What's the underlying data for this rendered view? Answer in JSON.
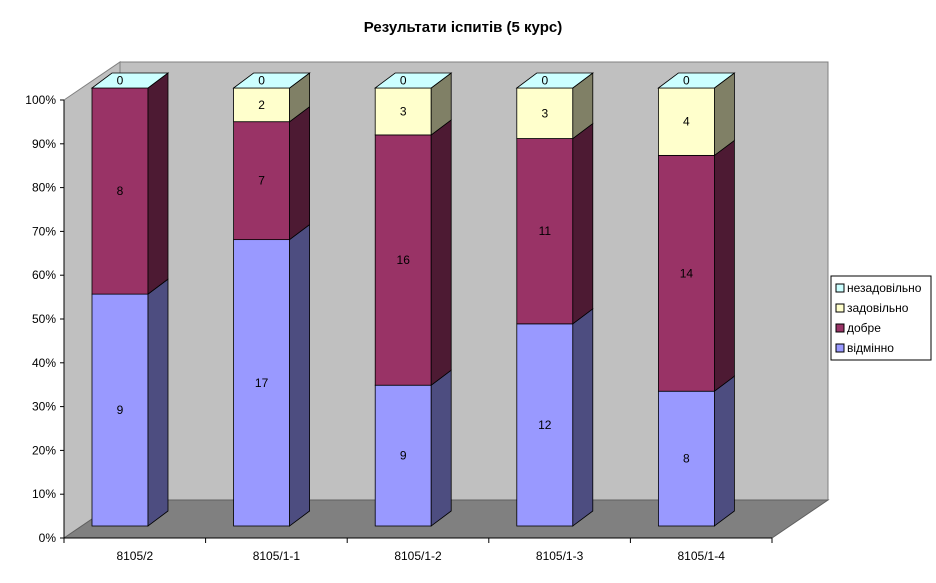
{
  "chart_data": {
    "type": "bar",
    "subtype": "stacked-100-3d",
    "title": "Результати іспитів (5 курс)",
    "categories": [
      "8105/2",
      "8105/1-1",
      "8105/1-2",
      "8105/1-3",
      "8105/1-4"
    ],
    "series": [
      {
        "name": "відмінно",
        "values": [
          9,
          17,
          9,
          12,
          8
        ],
        "color": "#9999FF"
      },
      {
        "name": "добре",
        "values": [
          8,
          7,
          16,
          11,
          14
        ],
        "color": "#993366"
      },
      {
        "name": "задовільно",
        "values": [
          0,
          2,
          3,
          3,
          4
        ],
        "color": "#FFFFCC"
      },
      {
        "name": "незадовільно",
        "values": [
          0,
          0,
          0,
          0,
          0
        ],
        "color": "#CCFFFF"
      }
    ],
    "y_ticks": [
      "0%",
      "10%",
      "20%",
      "30%",
      "40%",
      "50%",
      "60%",
      "70%",
      "80%",
      "90%",
      "100%"
    ],
    "ylim": [
      0,
      100
    ],
    "legend_position": "right",
    "wall_color": "#C0C0C0",
    "floor_color": "#808080"
  }
}
